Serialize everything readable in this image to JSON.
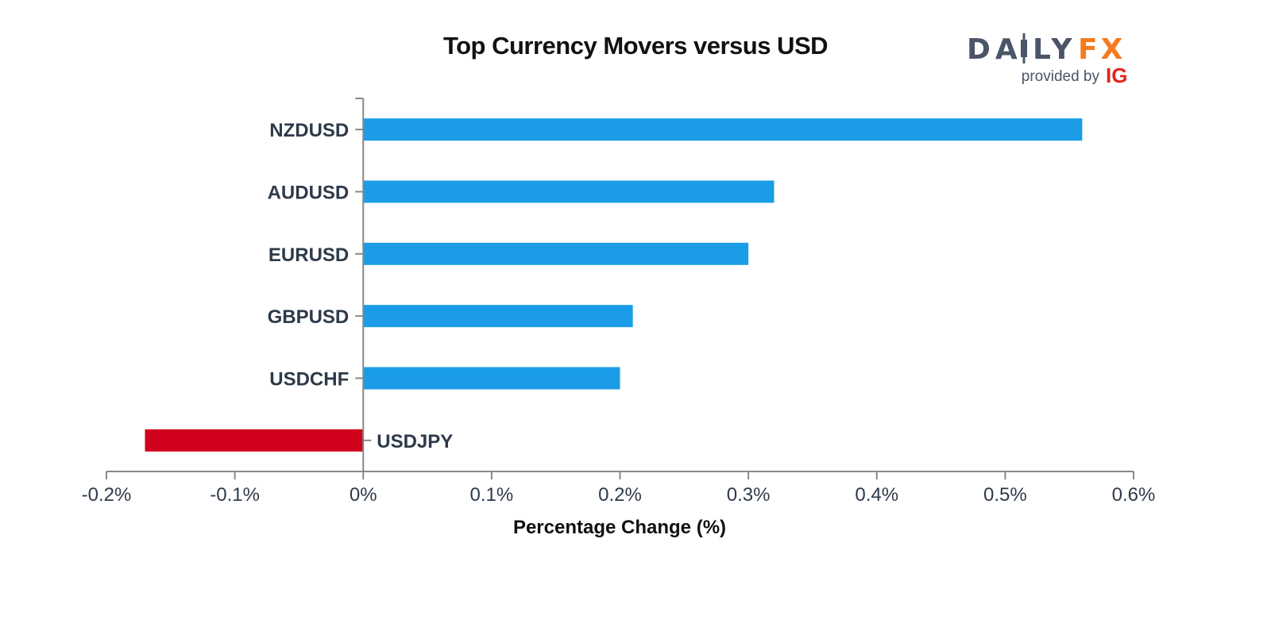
{
  "header": {
    "title": "Top Currency Movers versus USD"
  },
  "logo": {
    "brand_left": "DA",
    "brand_mid": "LY",
    "brand_right": "FX",
    "tagline": "provided by",
    "partner": "IG",
    "icon": "candlestick-i-icon"
  },
  "colors": {
    "positive": "#1a9de6",
    "negative": "#d0021b",
    "text": "#2e3a4a",
    "axis": "#888888",
    "logo_gray": "#4a5568",
    "logo_orange": "#f47b20",
    "logo_red": "#e2231a"
  },
  "chart_data": {
    "type": "bar",
    "orientation": "horizontal",
    "title": "Top Currency Movers versus USD",
    "xlabel": "Percentage Change (%)",
    "ylabel": "",
    "xlim": [
      -0.2,
      0.6
    ],
    "ticks": [
      -0.2,
      -0.1,
      0,
      0.1,
      0.2,
      0.3,
      0.4,
      0.5,
      0.6
    ],
    "tick_labels": [
      "-0.2%",
      "-0.1%",
      "0%",
      "0.1%",
      "0.2%",
      "0.3%",
      "0.4%",
      "0.5%",
      "0.6%"
    ],
    "categories": [
      "NZDUSD",
      "AUDUSD",
      "EURUSD",
      "GBPUSD",
      "USDCHF",
      "USDJPY"
    ],
    "values": [
      0.56,
      0.32,
      0.3,
      0.21,
      0.2,
      -0.17
    ],
    "grid": false,
    "legend": "none"
  }
}
